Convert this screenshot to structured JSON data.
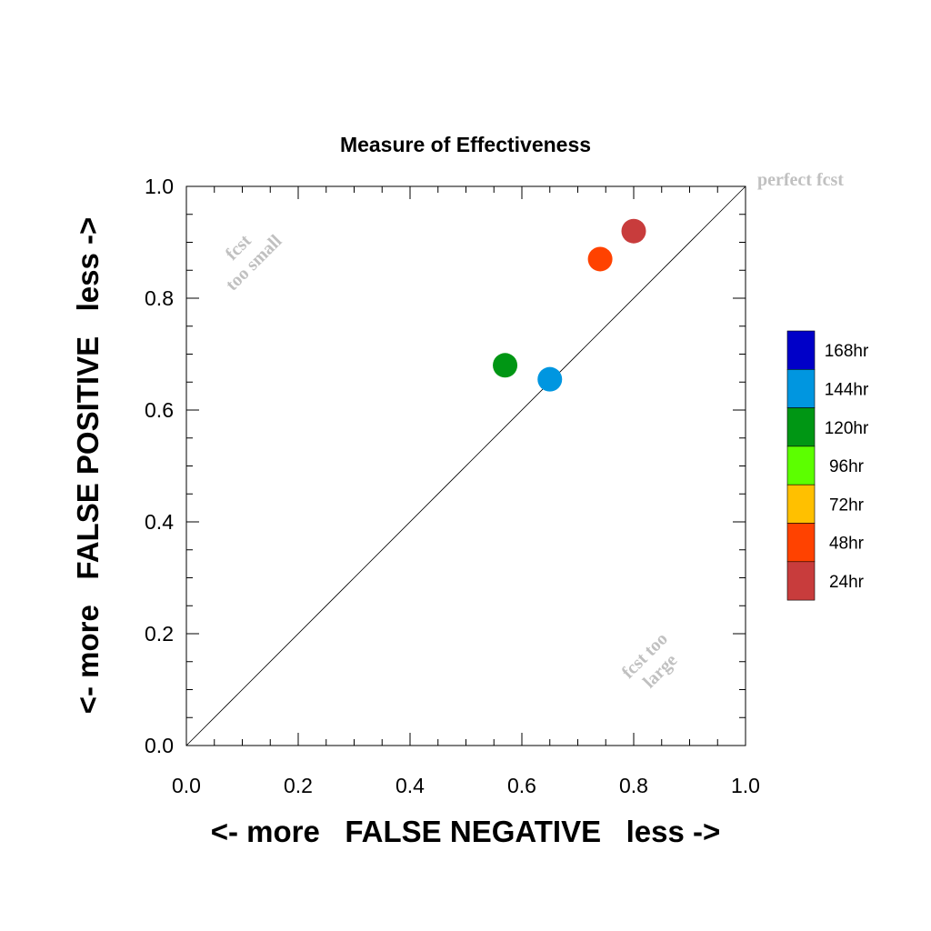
{
  "chart_data": {
    "type": "scatter",
    "title": "Measure of Effectiveness",
    "xlabel": "<- more   FALSE NEGATIVE   less ->",
    "ylabel": "<- more   FALSE POSITIVE   less ->",
    "xlim": [
      0.0,
      1.0
    ],
    "ylim": [
      0.0,
      1.0
    ],
    "x_ticks": [
      "0.0",
      "0.2",
      "0.4",
      "0.6",
      "0.8",
      "1.0"
    ],
    "y_ticks": [
      "0.0",
      "0.2",
      "0.4",
      "0.6",
      "0.8",
      "1.0"
    ],
    "grid": false,
    "diagonal_line": true,
    "annotations": {
      "perfect": "perfect fcst",
      "too_small_1": "fcst",
      "too_small_2": "too small",
      "too_large_1": "fcst too",
      "too_large_2": "large"
    },
    "legend_position": "right",
    "legend": [
      {
        "label": "168hr",
        "color": "#0000c8"
      },
      {
        "label": "144hr",
        "color": "#0096e0"
      },
      {
        "label": "120hr",
        "color": "#009614"
      },
      {
        "label": "96hr",
        "color": "#5cff00"
      },
      {
        "label": "72hr",
        "color": "#ffc000"
      },
      {
        "label": "48hr",
        "color": "#ff4200"
      },
      {
        "label": "24hr",
        "color": "#c83c3c"
      }
    ],
    "points": [
      {
        "series": "24hr",
        "x": 0.8,
        "y": 0.92,
        "color": "#c83c3c"
      },
      {
        "series": "48hr",
        "x": 0.74,
        "y": 0.87,
        "color": "#ff4200"
      },
      {
        "series": "120hr",
        "x": 0.57,
        "y": 0.68,
        "color": "#009614"
      },
      {
        "series": "144hr",
        "x": 0.65,
        "y": 0.655,
        "color": "#0096e0"
      }
    ]
  }
}
